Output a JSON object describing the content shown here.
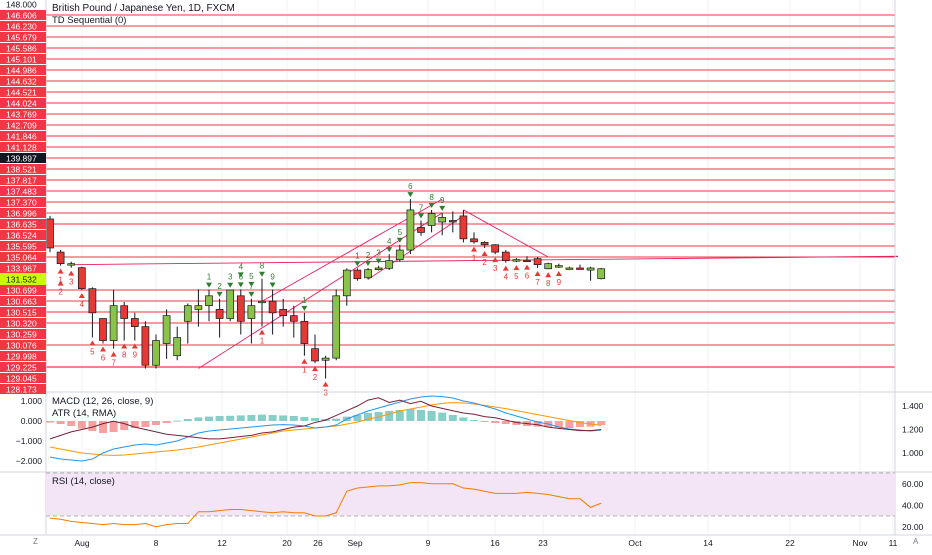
{
  "header": {
    "symbol_title": "British Pound / Japanese Yen, 1D, FXCM",
    "indicator_td": "TD Sequential (0)"
  },
  "panes": {
    "macd_label": "MACD (12, 26, close, 9)",
    "atr_label": "ATR (14, RMA)",
    "rsi_label": "RSI (14, close)"
  },
  "axis_corner": {
    "left": "Z",
    "right": "A"
  },
  "colors": {
    "up": "#8bc34a",
    "up_dark": "#4caf50",
    "down": "#e53935",
    "level": "#f23645",
    "trend": "#e91e63",
    "setup_green": "#2e7d32",
    "macd": "#2196f3",
    "signal": "#ff9800",
    "atr": "#7b1f3a",
    "rsi": "#f57c00",
    "rsi_band": "#f3e5f5",
    "hist_pos": "#26a69a",
    "hist_neg": "#ef5350"
  },
  "chart_data": {
    "type": "candlestick",
    "title": "British Pound / Japanese Yen, 1D, FXCM",
    "price_axis_ticks": [
      "148.000",
      "146.606",
      "146.230",
      "145.679",
      "145.586",
      "145.101",
      "144.986",
      "144.632",
      "144.521",
      "144.024",
      "143.769",
      "142.709",
      "141.846",
      "141.128",
      "139.897",
      "138.521",
      "137.817",
      "137.483",
      "137.370",
      "136.996",
      "136.635",
      "136.524",
      "135.595",
      "135.064",
      "133.967",
      "131.532",
      "130.699",
      "130.663",
      "130.515",
      "130.320",
      "130.259",
      "130.076",
      "129.998",
      "129.225",
      "129.045",
      "128.173"
    ],
    "price_axis_ranks": [
      148.0,
      146.606,
      146.23,
      145.679,
      145.586,
      145.101,
      144.986,
      144.632,
      144.521,
      144.024,
      143.769,
      142.709,
      141.846,
      141.128,
      139.897,
      138.521,
      137.817,
      137.483,
      137.37,
      136.996,
      136.635,
      136.524,
      135.595,
      135.064,
      133.967,
      131.532,
      130.699,
      130.663,
      130.515,
      130.32,
      130.259,
      130.076,
      129.998,
      129.225,
      129.045,
      128.173
    ],
    "price_scale": "ordinal",
    "current_price_label": "131.532",
    "highlight_label": "139.897",
    "x_ticks": [
      "Aug",
      "8",
      "12",
      "20",
      "26",
      "Sep",
      "9",
      "16",
      "23",
      "Oct",
      "14",
      "22",
      "Nov",
      "11"
    ],
    "support_resistance_levels": [
      146.606,
      146.23,
      145.679,
      145.586,
      145.101,
      144.986,
      144.632,
      144.521,
      144.024,
      143.769,
      142.709,
      141.846,
      141.128,
      139.897,
      138.521,
      137.817,
      137.483,
      137.37,
      136.996,
      136.635,
      135.595,
      135.064,
      130.699,
      130.663,
      130.515,
      130.32,
      130.076,
      129.225
    ],
    "candles": [
      {
        "o": 136.8,
        "h": 136.9,
        "l": 135.3,
        "c": 135.5
      },
      {
        "o": 135.3,
        "h": 135.4,
        "l": 134.2,
        "c": 134.4
      },
      {
        "o": 134.4,
        "h": 134.6,
        "l": 134.0,
        "c": 134.4
      },
      {
        "o": 134.0,
        "h": 134.1,
        "l": 130.7,
        "c": 130.8
      },
      {
        "o": 130.8,
        "h": 130.9,
        "l": 130.2,
        "c": 130.5
      },
      {
        "o": 130.4,
        "h": 130.4,
        "l": 130.1,
        "c": 130.15
      },
      {
        "o": 130.15,
        "h": 130.7,
        "l": 130.05,
        "c": 130.6
      },
      {
        "o": 130.6,
        "h": 130.65,
        "l": 130.15,
        "c": 130.4
      },
      {
        "o": 130.4,
        "h": 130.5,
        "l": 130.15,
        "c": 130.3
      },
      {
        "o": 130.3,
        "h": 130.35,
        "l": 129.2,
        "c": 129.35
      },
      {
        "o": 129.35,
        "h": 130.25,
        "l": 129.2,
        "c": 130.15
      },
      {
        "o": 130.1,
        "h": 130.55,
        "l": 129.8,
        "c": 130.45
      },
      {
        "o": 130.0,
        "h": 130.3,
        "l": 129.7,
        "c": 130.2
      },
      {
        "o": 130.35,
        "h": 130.63,
        "l": 130.1,
        "c": 130.6
      },
      {
        "o": 130.55,
        "h": 130.75,
        "l": 130.3,
        "c": 130.6
      },
      {
        "o": 130.6,
        "h": 130.73,
        "l": 130.35,
        "c": 130.68
      },
      {
        "o": 130.55,
        "h": 130.67,
        "l": 130.2,
        "c": 130.4
      },
      {
        "o": 130.4,
        "h": 130.72,
        "l": 130.35,
        "c": 130.7
      },
      {
        "o": 130.68,
        "h": 130.75,
        "l": 130.25,
        "c": 130.35
      },
      {
        "o": 130.4,
        "h": 130.67,
        "l": 130.1,
        "c": 130.6
      },
      {
        "o": 130.65,
        "h": 131.6,
        "l": 130.3,
        "c": 130.66
      },
      {
        "o": 130.66,
        "h": 130.74,
        "l": 130.25,
        "c": 130.5
      },
      {
        "o": 130.55,
        "h": 130.67,
        "l": 130.3,
        "c": 130.45
      },
      {
        "o": 130.45,
        "h": 130.6,
        "l": 130.2,
        "c": 130.35
      },
      {
        "o": 130.35,
        "h": 130.5,
        "l": 130.0,
        "c": 130.1
      },
      {
        "o": 130.05,
        "h": 130.25,
        "l": 129.5,
        "c": 129.65
      },
      {
        "o": 129.7,
        "h": 130.0,
        "l": 129.0,
        "c": 129.85
      },
      {
        "o": 129.85,
        "h": 130.75,
        "l": 129.7,
        "c": 130.68
      },
      {
        "o": 130.68,
        "h": 133.9,
        "l": 130.6,
        "c": 133.5
      },
      {
        "o": 133.5,
        "h": 133.9,
        "l": 131.4,
        "c": 131.6
      },
      {
        "o": 131.8,
        "h": 133.97,
        "l": 131.5,
        "c": 133.6
      },
      {
        "o": 133.6,
        "h": 134.2,
        "l": 133.4,
        "c": 133.97
      },
      {
        "o": 133.9,
        "h": 135.2,
        "l": 133.5,
        "c": 134.7
      },
      {
        "o": 134.8,
        "h": 135.7,
        "l": 134.6,
        "c": 135.4
      },
      {
        "o": 135.4,
        "h": 137.4,
        "l": 135.2,
        "c": 137.1
      },
      {
        "o": 136.6,
        "h": 136.75,
        "l": 136.45,
        "c": 136.55
      },
      {
        "o": 136.62,
        "h": 137.1,
        "l": 136.55,
        "c": 136.98
      },
      {
        "o": 136.7,
        "h": 137.0,
        "l": 136.5,
        "c": 136.85
      },
      {
        "o": 136.75,
        "h": 137.05,
        "l": 136.55,
        "c": 136.7
      },
      {
        "o": 136.9,
        "h": 137.1,
        "l": 135.9,
        "c": 136.2
      },
      {
        "o": 136.2,
        "h": 136.55,
        "l": 135.8,
        "c": 135.95
      },
      {
        "o": 135.9,
        "h": 136.0,
        "l": 135.5,
        "c": 135.7
      },
      {
        "o": 135.7,
        "h": 135.75,
        "l": 135.2,
        "c": 135.3
      },
      {
        "o": 135.3,
        "h": 135.4,
        "l": 134.5,
        "c": 134.7
      },
      {
        "o": 134.7,
        "h": 134.95,
        "l": 134.55,
        "c": 134.8
      },
      {
        "o": 134.75,
        "h": 135.1,
        "l": 134.6,
        "c": 134.7
      },
      {
        "o": 134.9,
        "h": 135.05,
        "l": 133.97,
        "c": 134.3
      },
      {
        "o": 133.8,
        "h": 134.5,
        "l": 133.7,
        "c": 134.4
      },
      {
        "o": 134.2,
        "h": 134.4,
        "l": 133.97,
        "c": 134.2
      },
      {
        "o": 133.97,
        "h": 134.1,
        "l": 133.9,
        "c": 133.97
      },
      {
        "o": 133.97,
        "h": 134.3,
        "l": 133.7,
        "c": 133.8
      },
      {
        "o": 133.5,
        "h": 134.1,
        "l": 131.4,
        "c": 133.97
      },
      {
        "o": 131.6,
        "h": 133.97,
        "l": 131.5,
        "c": 133.8
      }
    ],
    "td_counts_above": [
      {
        "i": 18,
        "t": "6"
      },
      {
        "i": 19,
        "t": "7"
      },
      {
        "i": 20,
        "t": "8"
      },
      {
        "i": 21,
        "t": "9"
      },
      {
        "i": 24,
        "t": "1"
      },
      {
        "i": 16,
        "t": "2"
      },
      {
        "i": 17,
        "t": "3"
      },
      {
        "i": 18,
        "t": "4"
      },
      {
        "i": 19,
        "t": "5"
      },
      {
        "i": 15,
        "t": "1"
      },
      {
        "i": 29,
        "t": "1"
      },
      {
        "i": 30,
        "t": "2"
      },
      {
        "i": 31,
        "t": "3"
      },
      {
        "i": 32,
        "t": "4"
      },
      {
        "i": 33,
        "t": "5"
      },
      {
        "i": 34,
        "t": "6"
      },
      {
        "i": 35,
        "t": "7"
      },
      {
        "i": 36,
        "t": "8"
      },
      {
        "i": 37,
        "t": "9"
      }
    ],
    "td_counts_below": [
      {
        "i": 1,
        "t": "1"
      },
      {
        "i": 1,
        "t": "2"
      },
      {
        "i": 2,
        "t": "3"
      },
      {
        "i": 3,
        "t": "4"
      },
      {
        "i": 4,
        "t": "5"
      },
      {
        "i": 5,
        "t": "6"
      },
      {
        "i": 6,
        "t": "7"
      },
      {
        "i": 7,
        "t": "8"
      },
      {
        "i": 8,
        "t": "9"
      },
      {
        "i": 20,
        "t": "1"
      },
      {
        "i": 24,
        "t": "1"
      },
      {
        "i": 25,
        "t": "2"
      },
      {
        "i": 26,
        "t": "3"
      },
      {
        "i": 40,
        "t": "1"
      },
      {
        "i": 41,
        "t": "2"
      },
      {
        "i": 42,
        "t": "3"
      },
      {
        "i": 43,
        "t": "4"
      },
      {
        "i": 44,
        "t": "5"
      },
      {
        "i": 45,
        "t": "6"
      },
      {
        "i": 46,
        "t": "7"
      },
      {
        "i": 47,
        "t": "8"
      },
      {
        "i": 48,
        "t": "9"
      }
    ],
    "macd_axis": [
      "1.000",
      "0.000",
      "−1.000",
      "−2.000"
    ],
    "atr_axis": [
      "1.400",
      "1.200",
      "1.000"
    ],
    "rsi_axis": [
      "60.00",
      "40.00",
      "20.00"
    ],
    "macd_hist": [
      -0.08,
      -0.15,
      -0.25,
      -0.38,
      -0.5,
      -0.6,
      -0.55,
      -0.45,
      -0.35,
      -0.3,
      -0.2,
      -0.1,
      0.02,
      0.1,
      0.18,
      0.22,
      0.25,
      0.26,
      0.28,
      0.3,
      0.32,
      0.3,
      0.28,
      0.25,
      0.2,
      0.15,
      0.1,
      0.12,
      0.22,
      0.3,
      0.4,
      0.45,
      0.5,
      0.55,
      0.6,
      0.55,
      0.5,
      0.42,
      0.3,
      0.18,
      0.05,
      -0.05,
      -0.1,
      -0.15,
      -0.2,
      -0.25,
      -0.28,
      -0.3,
      -0.32,
      -0.35,
      -0.3,
      -0.28,
      -0.2
    ],
    "macd_line": [
      -1.8,
      -1.9,
      -1.95,
      -2.0,
      -1.9,
      -1.6,
      -1.4,
      -1.3,
      -1.2,
      -1.15,
      -1.2,
      -1.1,
      -1.0,
      -0.8,
      -0.6,
      -0.5,
      -0.45,
      -0.4,
      -0.35,
      -0.3,
      -0.25,
      -0.2,
      -0.18,
      -0.2,
      -0.25,
      -0.35,
      -0.3,
      -0.2,
      0.1,
      0.3,
      0.5,
      0.65,
      0.8,
      0.95,
      1.1,
      1.2,
      1.25,
      1.22,
      1.15,
      1.0,
      0.9,
      0.75,
      0.6,
      0.4,
      0.25,
      0.1,
      -0.05,
      -0.15,
      -0.3,
      -0.4,
      -0.45,
      -0.5,
      -0.45
    ],
    "signal_line": [
      -1.3,
      -1.4,
      -1.5,
      -1.6,
      -1.65,
      -1.7,
      -1.72,
      -1.7,
      -1.65,
      -1.6,
      -1.55,
      -1.5,
      -1.45,
      -1.38,
      -1.3,
      -1.2,
      -1.1,
      -1.0,
      -0.9,
      -0.8,
      -0.7,
      -0.6,
      -0.5,
      -0.45,
      -0.4,
      -0.35,
      -0.3,
      -0.25,
      -0.15,
      -0.05,
      0.1,
      0.2,
      0.35,
      0.5,
      0.6,
      0.7,
      0.8,
      0.88,
      0.92,
      0.9,
      0.85,
      0.78,
      0.7,
      0.62,
      0.52,
      0.42,
      0.32,
      0.22,
      0.12,
      0.02,
      -0.08,
      -0.15,
      -0.22
    ],
    "atr_line": [
      1.12,
      1.15,
      1.18,
      1.2,
      1.22,
      1.25,
      1.27,
      1.25,
      1.22,
      1.2,
      1.18,
      1.16,
      1.15,
      1.14,
      1.13,
      1.12,
      1.12,
      1.13,
      1.14,
      1.15,
      1.17,
      1.18,
      1.2,
      1.22,
      1.23,
      1.26,
      1.28,
      1.32,
      1.36,
      1.4,
      1.45,
      1.47,
      1.43,
      1.45,
      1.42,
      1.44,
      1.4,
      1.38,
      1.36,
      1.34,
      1.33,
      1.31,
      1.3,
      1.28,
      1.26,
      1.25,
      1.24,
      1.22,
      1.21,
      1.2,
      1.19,
      1.19,
      1.2
    ],
    "rsi_line": [
      28,
      27,
      25,
      24,
      23,
      22,
      23,
      22,
      22,
      23,
      20,
      22,
      23,
      23,
      34,
      34,
      35,
      36,
      36,
      35,
      34,
      33,
      34,
      33,
      33,
      30,
      30,
      33,
      53,
      56,
      57,
      58,
      58,
      59,
      61,
      61,
      60,
      60,
      60,
      56,
      55,
      53,
      51,
      51,
      51,
      52,
      51,
      50,
      48,
      46,
      46,
      38,
      42
    ]
  }
}
